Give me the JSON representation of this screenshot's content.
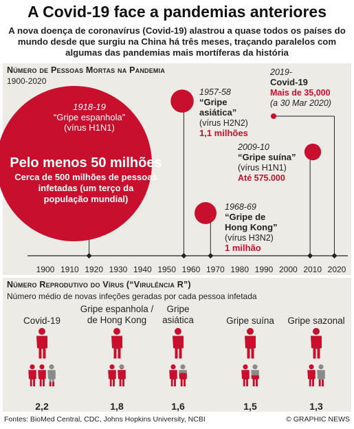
{
  "header": {
    "title": "A Covid-19 face a pandemias anteriores",
    "subtitle": "A nova doença de coronavírus (Covid-19) alastrou a quase todos os países do mundo desde que surgiu na China há três meses, traçando paralelos com algumas das pandemias mais mortíferas da história"
  },
  "colors": {
    "red": "#c8102e",
    "dark": "#222222",
    "grey": "#8a8a8a",
    "panel": "#ecebe6"
  },
  "deaths_section": {
    "title": "Número de Pessoas Mortas na Pandemia",
    "period": "1900-2020"
  },
  "pandemics": [
    {
      "period": "1918-19",
      "name": "“Gripe espanhola”",
      "virus": "(vírus H1N1)",
      "deaths_label": "Pelo menos 50 milhões",
      "note": "Cerca de 500 milhões de pessoas infetadas (um terço da população mundial)"
    },
    {
      "period": "1957-58",
      "name": "“Gripe asiática”",
      "virus": "(vírus H2N2)",
      "deaths_label": "1,1 milhões"
    },
    {
      "period": "2009-10",
      "name": "“Gripe suína”",
      "virus": "(vírus H1N1)",
      "deaths_label": "Até 575.000"
    },
    {
      "period": "1968-69",
      "name": "“Gripe de Hong Kong”",
      "virus": "(vírus H3N2)",
      "deaths_label": "1 milhão"
    },
    {
      "period": "2019-",
      "name": "Covid-19",
      "deaths_label": "Mais de 35,000",
      "date_note": "(a 30 Mar 2020)"
    }
  ],
  "r_section": {
    "title": "Número Reprodutivo do Vírus (“Virulência R”)",
    "subtitle": "Número médio de novas infeções geradas por cada pessoa infetada"
  },
  "r_groups": [
    {
      "label": "Covid-19",
      "value": "2,2"
    },
    {
      "label": "Gripe espanhola / de Hong Kong",
      "value": "1,8"
    },
    {
      "label": "Gripe asiática",
      "value": "1,6"
    },
    {
      "label": "Gripe suína",
      "value": "1,5"
    },
    {
      "label": "Gripe sazonal",
      "value": "1,3"
    }
  ],
  "footer": {
    "sources": "Fontes: BioMed Central, CDC, Johns Hopkins University, NCBI",
    "credit": "© GRAPHIC NEWS"
  },
  "chart_data": [
    {
      "type": "scatter",
      "title": "Número de Pessoas Mortas na Pandemia",
      "subtitle": "1900-2020",
      "x_ticks": [
        1900,
        1910,
        1920,
        1930,
        1940,
        1950,
        1960,
        1970,
        1980,
        1990,
        2000,
        2010,
        2020
      ],
      "xlim": [
        1900,
        2020
      ],
      "points": [
        {
          "x": 1918,
          "deaths": 50000000,
          "label": "Pelo menos 50 milhões"
        },
        {
          "x": 1957,
          "deaths": 1100000,
          "label": "1,1 milhões"
        },
        {
          "x": 1968,
          "deaths": 1000000,
          "label": "1 milhão"
        },
        {
          "x": 2009,
          "deaths": 575000,
          "label": "Até 575.000"
        },
        {
          "x": 2019,
          "deaths": 35000,
          "label": "Mais de 35,000"
        }
      ]
    },
    {
      "type": "bar",
      "title": "Número Reprodutivo do Vírus (“Virulência R”)",
      "categories": [
        "Covid-19",
        "Gripe espanhola / de Hong Kong",
        "Gripe asiática",
        "Gripe suína",
        "Gripe sazonal"
      ],
      "values": [
        2.2,
        1.8,
        1.6,
        1.5,
        1.3
      ]
    }
  ]
}
